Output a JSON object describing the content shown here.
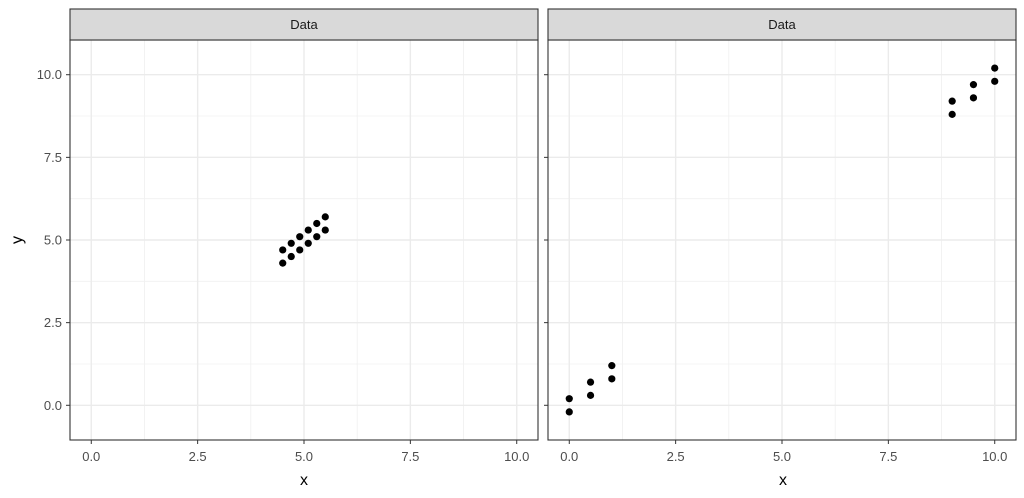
{
  "chart_data": {
    "type": "scatter",
    "xlabel": "x",
    "ylabel": "y",
    "xlim": [
      -0.5,
      10.5
    ],
    "ylim": [
      -1.05,
      11.05
    ],
    "x_ticks": [
      0,
      2.5,
      5,
      7.5,
      10
    ],
    "x_tick_labels": [
      "0.0",
      "2.5",
      "5.0",
      "7.5",
      "10.0"
    ],
    "y_ticks": [
      0,
      2.5,
      5,
      7.5,
      10
    ],
    "y_tick_labels": [
      "0.0",
      "2.5",
      "5.0",
      "7.5",
      "10.0"
    ],
    "grid": true,
    "point_color": "#000000",
    "panels": [
      {
        "strip": "Data",
        "points": [
          {
            "x": 4.5,
            "y": 4.3
          },
          {
            "x": 4.5,
            "y": 4.7
          },
          {
            "x": 4.7,
            "y": 4.5
          },
          {
            "x": 4.7,
            "y": 4.9
          },
          {
            "x": 4.9,
            "y": 4.7
          },
          {
            "x": 4.9,
            "y": 5.1
          },
          {
            "x": 5.1,
            "y": 4.9
          },
          {
            "x": 5.1,
            "y": 5.3
          },
          {
            "x": 5.3,
            "y": 5.1
          },
          {
            "x": 5.3,
            "y": 5.5
          },
          {
            "x": 5.5,
            "y": 5.3
          },
          {
            "x": 5.5,
            "y": 5.7
          }
        ]
      },
      {
        "strip": "Data",
        "points": [
          {
            "x": 0.0,
            "y": -0.2
          },
          {
            "x": 0.0,
            "y": 0.2
          },
          {
            "x": 0.5,
            "y": 0.3
          },
          {
            "x": 0.5,
            "y": 0.7
          },
          {
            "x": 1.0,
            "y": 0.8
          },
          {
            "x": 1.0,
            "y": 1.2
          },
          {
            "x": 9.0,
            "y": 8.8
          },
          {
            "x": 9.0,
            "y": 9.2
          },
          {
            "x": 9.5,
            "y": 9.3
          },
          {
            "x": 9.5,
            "y": 9.7
          },
          {
            "x": 10.0,
            "y": 9.8
          },
          {
            "x": 10.0,
            "y": 10.2
          }
        ]
      }
    ]
  }
}
